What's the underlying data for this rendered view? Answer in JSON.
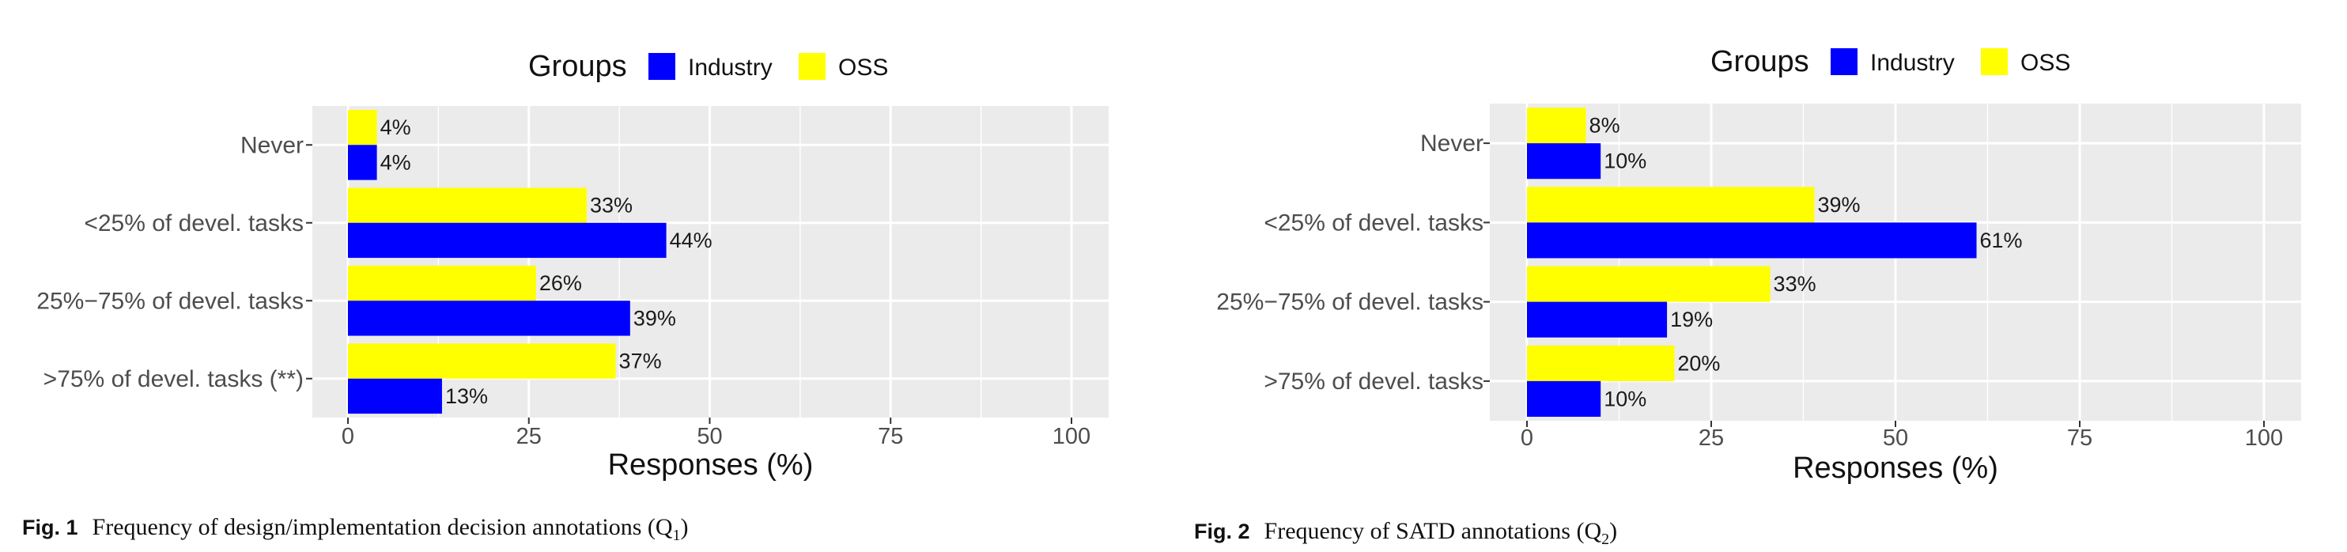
{
  "charts": [
    {
      "chart_data": {
        "type": "bar",
        "orientation": "horizontal",
        "categories": [
          "Never",
          "<25% of devel. tasks",
          "25%−75% of devel. tasks",
          ">75% of devel. tasks (**)"
        ],
        "series": [
          {
            "name": "Industry",
            "values": [
              4,
              44,
              39,
              13
            ],
            "color": "#0000ff"
          },
          {
            "name": "OSS",
            "values": [
              4,
              33,
              26,
              37
            ],
            "color": "#ffff00"
          }
        ],
        "data_labels": {
          "Industry": [
            "4%",
            "44%",
            "39%",
            "13%"
          ],
          "OSS": [
            "4%",
            "33%",
            "26%",
            "37%"
          ]
        },
        "legend_title": "Groups",
        "legend_position": "top",
        "xlabel": "Responses (%)",
        "xlim": [
          0,
          100
        ],
        "xticks": [
          "0",
          "25",
          "50",
          "75",
          "100"
        ],
        "grid": true
      },
      "caption": {
        "label": "Fig. 1",
        "text": "Frequency of design/implementation decision annotations (Q",
        "sub": "1",
        "close": ")"
      }
    },
    {
      "chart_data": {
        "type": "bar",
        "orientation": "horizontal",
        "categories": [
          "Never",
          "<25% of devel. tasks",
          "25%−75% of devel. tasks",
          ">75% of devel. tasks"
        ],
        "series": [
          {
            "name": "Industry",
            "values": [
              10,
              61,
              19,
              10
            ],
            "color": "#0000ff"
          },
          {
            "name": "OSS",
            "values": [
              8,
              39,
              33,
              20
            ],
            "color": "#ffff00"
          }
        ],
        "data_labels": {
          "Industry": [
            "10%",
            "61%",
            "19%",
            "10%"
          ],
          "OSS": [
            "8%",
            "39%",
            "33%",
            "20%"
          ]
        },
        "legend_title": "Groups",
        "legend_position": "top",
        "xlabel": "Responses (%)",
        "xlim": [
          0,
          100
        ],
        "xticks": [
          "0",
          "25",
          "50",
          "75",
          "100"
        ],
        "grid": true
      },
      "caption": {
        "label": "Fig. 2",
        "text": "Frequency of SATD annotations (Q",
        "sub": "2",
        "close": ")"
      }
    }
  ]
}
